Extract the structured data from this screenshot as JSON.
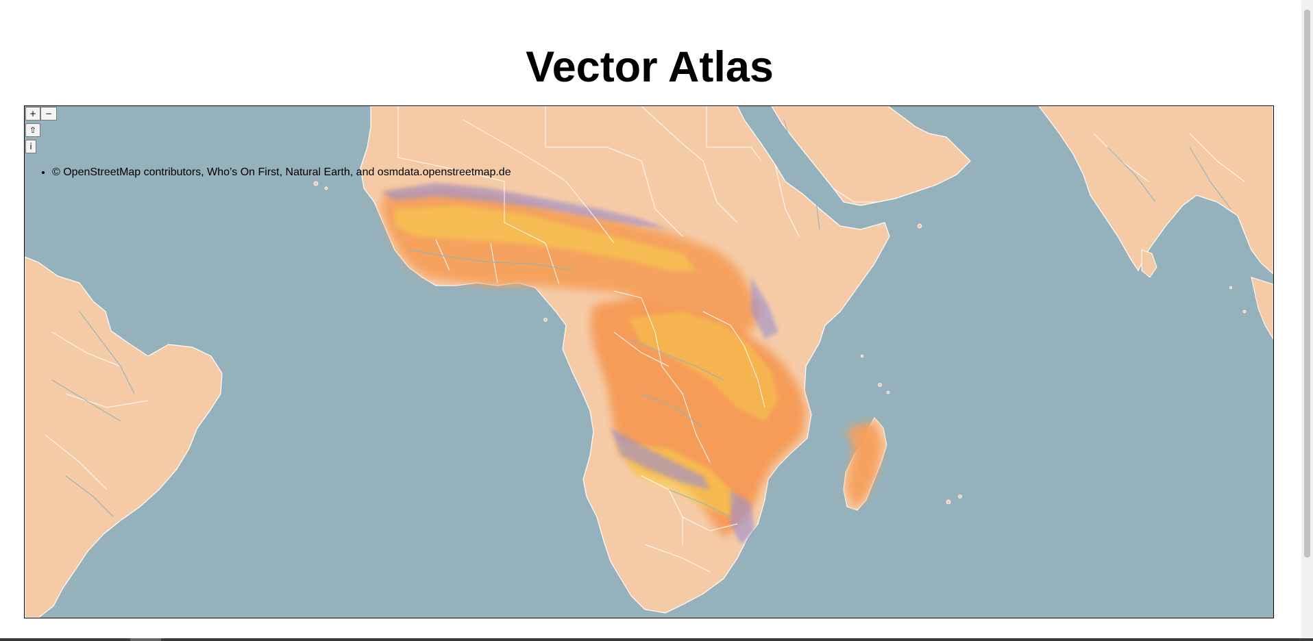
{
  "page": {
    "title": "Vector Atlas"
  },
  "map": {
    "controls": {
      "zoom_in": "+",
      "zoom_out": "−",
      "reset": "⇧",
      "info": "i"
    },
    "attribution": "© OpenStreetMap contributors, Who’s On First, Natural Earth, and osmdata.openstreetmap.de",
    "colors": {
      "ocean": "#95b1bb",
      "land": "#f5cba7",
      "borders": "#ffffff",
      "rivers": "#8fb1bd",
      "overlay_high": "#f6a05a",
      "overlay_mid": "#f7c948",
      "overlay_low": "#9a8fd0"
    },
    "layer": "species-distribution-overlay"
  }
}
